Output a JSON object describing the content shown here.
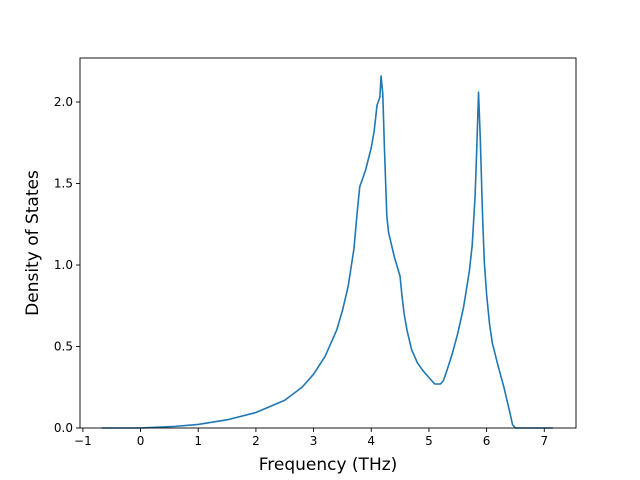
{
  "chart_data": {
    "type": "line",
    "title": "",
    "xlabel": "Frequency (THz)",
    "ylabel": "Density of States",
    "xlim": [
      -1.05,
      7.55
    ],
    "ylim": [
      0.0,
      2.27
    ],
    "xticks": [
      -1,
      0,
      1,
      2,
      3,
      4,
      5,
      6,
      7
    ],
    "xtick_labels": [
      "−1",
      "0",
      "1",
      "2",
      "3",
      "4",
      "5",
      "6",
      "7"
    ],
    "yticks": [
      0.0,
      0.5,
      1.0,
      1.5,
      2.0
    ],
    "ytick_labels": [
      "0.0",
      "0.5",
      "1.0",
      "1.5",
      "2.0"
    ],
    "grid": false,
    "line_color": "#1f77b4",
    "series": [
      {
        "x": [
          -0.67,
          -0.3,
          0.0,
          0.3,
          0.6,
          1.0,
          1.5,
          2.0,
          2.5,
          2.8,
          3.0,
          3.2,
          3.4,
          3.5,
          3.6,
          3.7,
          3.75,
          3.8,
          3.85,
          3.9,
          4.0,
          4.05,
          4.1,
          4.15,
          4.17,
          4.2,
          4.23,
          4.27,
          4.3,
          4.4,
          4.5,
          4.53,
          4.57,
          4.62,
          4.7,
          4.8,
          4.9,
          5.0,
          5.1,
          5.15,
          5.2,
          5.25,
          5.3,
          5.4,
          5.5,
          5.6,
          5.7,
          5.75,
          5.8,
          5.83,
          5.86,
          5.89,
          5.93,
          5.96,
          6.0,
          6.05,
          6.1,
          6.2,
          6.3,
          6.4,
          6.45,
          6.5,
          6.6,
          6.8,
          7.0,
          7.15
        ],
        "y": [
          0.0,
          0.0,
          0.0,
          0.005,
          0.01,
          0.022,
          0.05,
          0.095,
          0.17,
          0.25,
          0.33,
          0.44,
          0.6,
          0.72,
          0.87,
          1.1,
          1.3,
          1.48,
          1.53,
          1.58,
          1.72,
          1.82,
          1.98,
          2.03,
          2.16,
          2.05,
          1.7,
          1.3,
          1.2,
          1.05,
          0.93,
          0.82,
          0.7,
          0.6,
          0.48,
          0.4,
          0.35,
          0.31,
          0.27,
          0.27,
          0.27,
          0.29,
          0.34,
          0.45,
          0.58,
          0.74,
          0.96,
          1.12,
          1.42,
          1.72,
          2.06,
          1.78,
          1.3,
          1.02,
          0.82,
          0.64,
          0.52,
          0.38,
          0.25,
          0.1,
          0.02,
          0.0,
          0.0,
          0.0,
          0.0,
          0.0
        ]
      }
    ]
  }
}
